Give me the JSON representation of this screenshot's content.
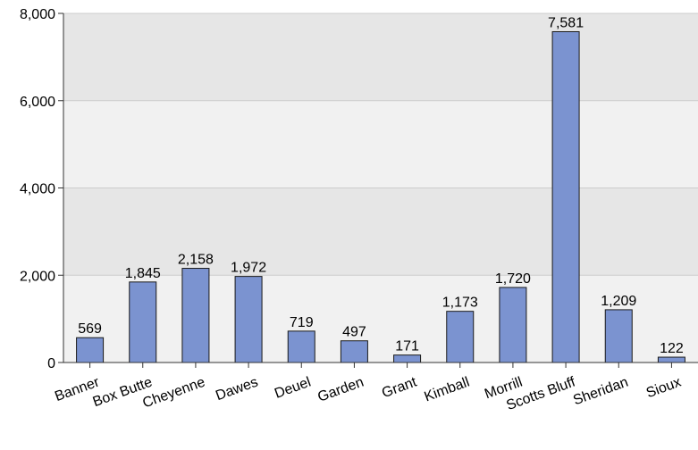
{
  "chart_data": {
    "type": "bar",
    "categories": [
      "Banner",
      "Box Butte",
      "Cheyenne",
      "Dawes",
      "Deuel",
      "Garden",
      "Grant",
      "Kimball",
      "Morrill",
      "Scotts Bluff",
      "Sheridan",
      "Sioux"
    ],
    "values": [
      569,
      1845,
      2158,
      1972,
      719,
      497,
      171,
      1173,
      1720,
      7581,
      1209,
      122
    ],
    "value_labels": [
      "569",
      "1,845",
      "2,158",
      "1,972",
      "719",
      "497",
      "171",
      "1,173",
      "1,720",
      "7,581",
      "1,209",
      "122"
    ],
    "yticks": [
      0,
      2000,
      4000,
      6000,
      8000
    ],
    "ytick_labels": [
      "0",
      "2,000",
      "4,000",
      "6,000",
      "8,000"
    ],
    "ylim": [
      0,
      8000
    ],
    "title": "",
    "xlabel": "",
    "ylabel": "",
    "grid": true,
    "colors": {
      "bar_fill": "#7b93d0",
      "bar_stroke": "#1a1a1a",
      "band_light": "#f1f1f1",
      "band_dark": "#e6e6e6",
      "gridline": "#cccccc",
      "axis": "#333333"
    }
  }
}
